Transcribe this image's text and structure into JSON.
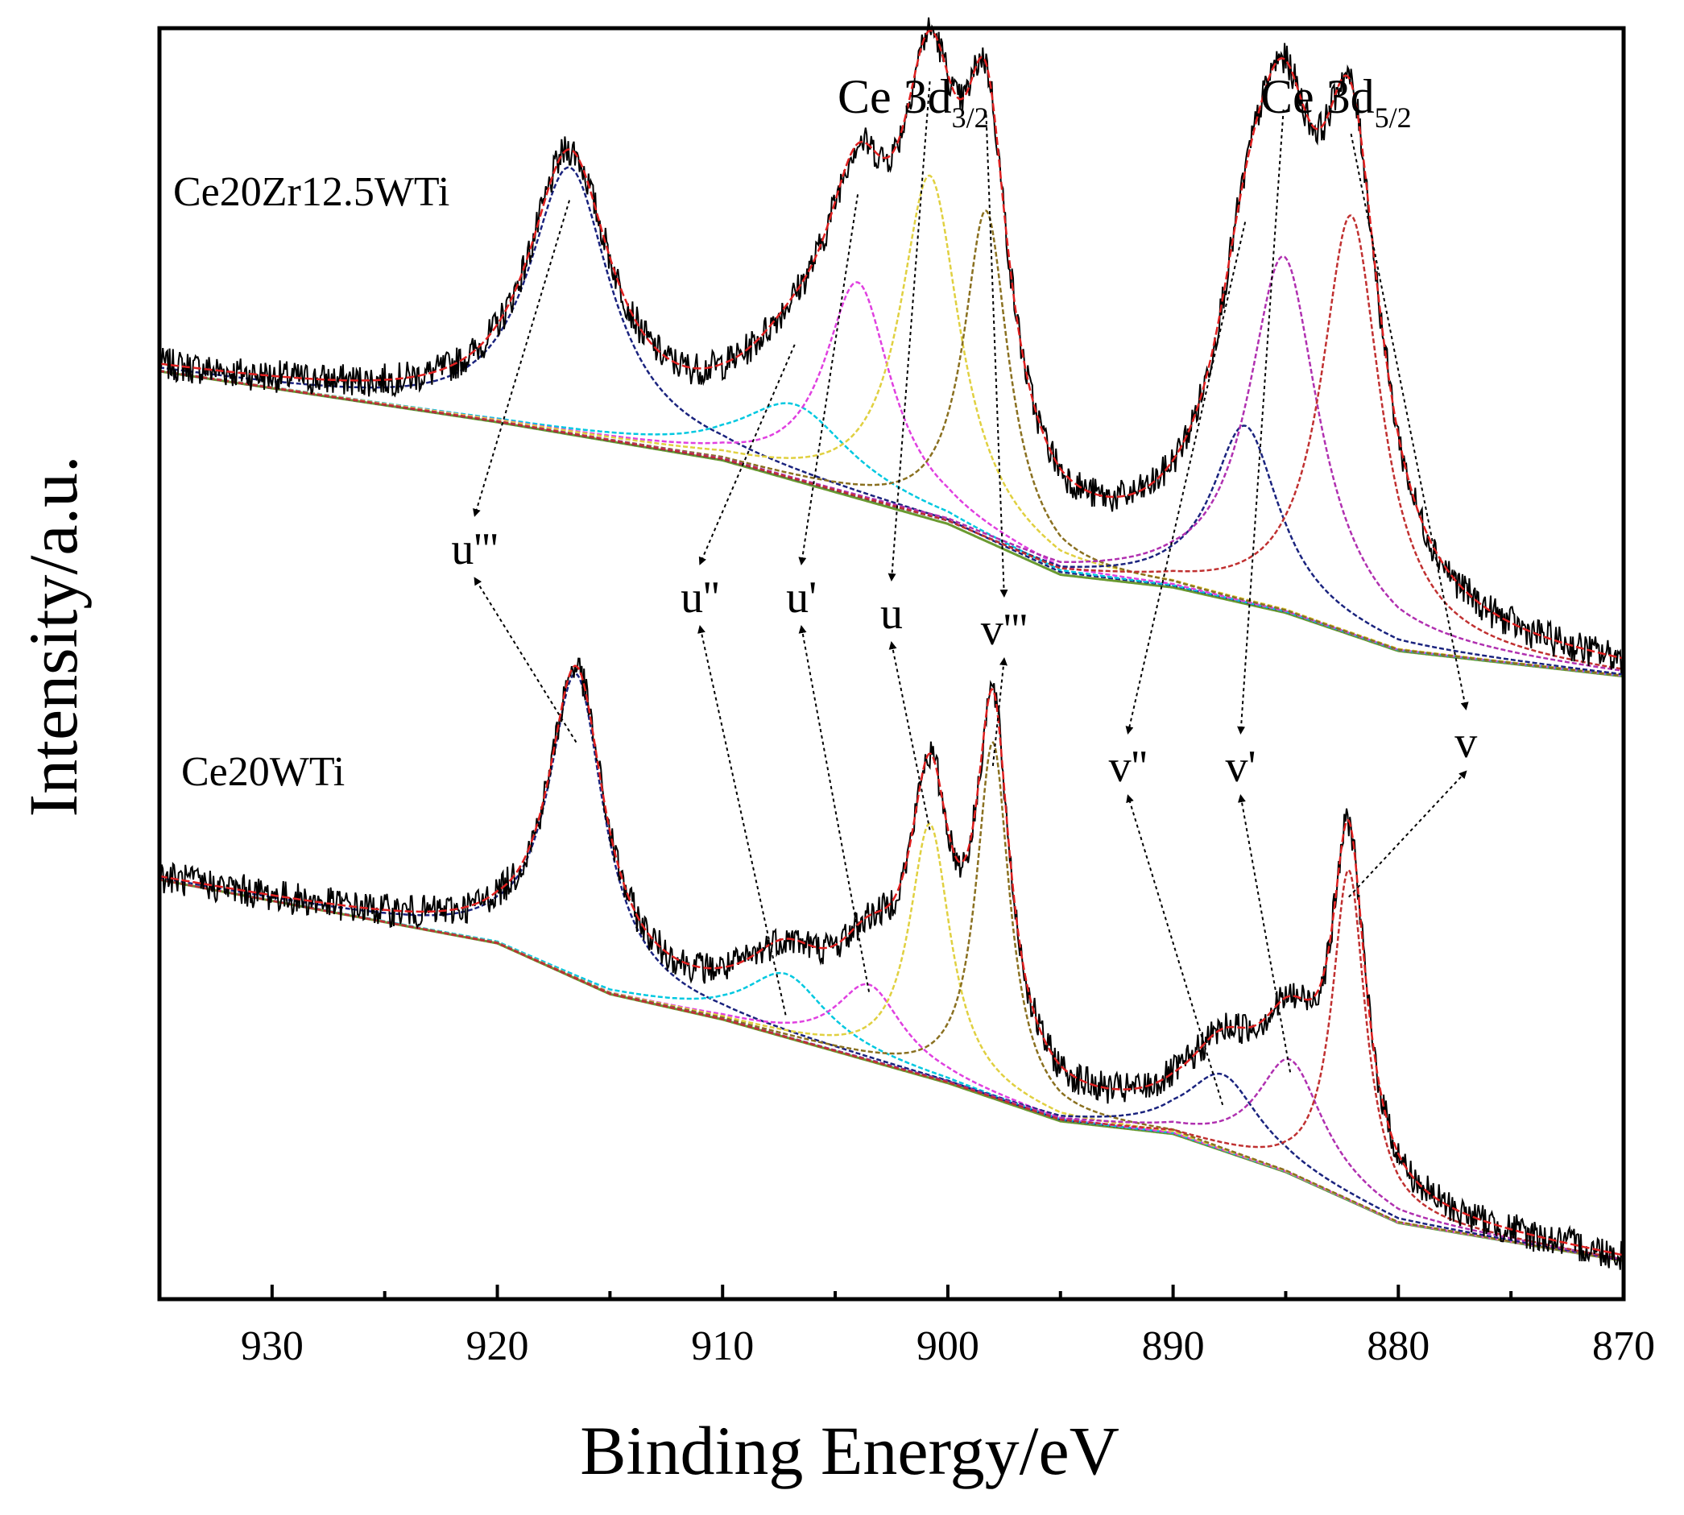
{
  "chart_data": {
    "type": "line",
    "title": "",
    "xlabel": "Binding Energy/eV",
    "ylabel": "Intensity/a.u.",
    "xlim": [
      935,
      870
    ],
    "x_reversed": true,
    "ylim": [
      0,
      100
    ],
    "x_ticks": [
      930,
      920,
      910,
      900,
      890,
      880,
      870
    ],
    "region_labels": [
      {
        "id": "ce3d32",
        "main": "Ce 3d",
        "sub": "3/2",
        "x": 900.5
      },
      {
        "id": "ce3d52",
        "main": "Ce 3d",
        "sub": "5/2",
        "x": 882.5
      }
    ],
    "peak_labels": [
      {
        "id": "u3",
        "text": "u'''",
        "x": 921
      },
      {
        "id": "u2",
        "text": "u''",
        "x": 911
      },
      {
        "id": "u1",
        "text": "u'",
        "x": 906.5
      },
      {
        "id": "u0",
        "text": "u",
        "x": 902.5
      },
      {
        "id": "v3",
        "text": "v'''",
        "x": 897.5
      },
      {
        "id": "v2",
        "text": "v''",
        "x": 892
      },
      {
        "id": "v1",
        "text": "v'",
        "x": 887
      },
      {
        "id": "v0",
        "text": "v",
        "x": 877
      }
    ],
    "series": [
      {
        "name": "Ce20Zr12.5WTi",
        "baseline_points": [
          [
            935,
            73
          ],
          [
            920,
            69
          ],
          [
            910,
            66
          ],
          [
            900,
            61
          ],
          [
            895,
            57
          ],
          [
            890,
            56
          ],
          [
            885,
            54
          ],
          [
            880,
            51
          ],
          [
            870,
            49
          ]
        ],
        "components": [
          {
            "peak": "u'''",
            "center": 916.8,
            "height": 21,
            "width": 2.2,
            "color": "#1a237e"
          },
          {
            "peak": "u''",
            "center": 906.8,
            "height": 6,
            "width": 3.0,
            "color": "#00c8e0"
          },
          {
            "peak": "u'",
            "center": 904.0,
            "height": 17,
            "width": 1.8,
            "color": "#e040e0"
          },
          {
            "peak": "u",
            "center": 900.8,
            "height": 27,
            "width": 1.6,
            "color": "#e0d040"
          },
          {
            "peak": "v'''",
            "center": 898.3,
            "height": 26,
            "width": 1.2,
            "color": "#8a7020"
          },
          {
            "peak": "v''",
            "center": 886.8,
            "height": 14,
            "width": 1.8,
            "color": "#1a237e"
          },
          {
            "peak": "v'",
            "center": 885.1,
            "height": 28,
            "width": 1.9,
            "color": "#b030b0"
          },
          {
            "peak": "v",
            "center": 882.1,
            "height": 33,
            "width": 1.6,
            "color": "#c03030"
          }
        ]
      },
      {
        "name": "Ce20WTi",
        "baseline_points": [
          [
            935,
            33
          ],
          [
            920,
            28
          ],
          [
            915,
            24
          ],
          [
            910,
            22
          ],
          [
            900,
            17
          ],
          [
            895,
            14
          ],
          [
            890,
            13
          ],
          [
            885,
            10
          ],
          [
            880,
            6
          ],
          [
            870,
            3
          ]
        ],
        "components": [
          {
            "peak": "u'''",
            "center": 916.5,
            "height": 24,
            "width": 1.5,
            "color": "#1a237e"
          },
          {
            "peak": "u''",
            "center": 907.2,
            "height": 5,
            "width": 2.2,
            "color": "#00c8e0"
          },
          {
            "peak": "u'",
            "center": 903.5,
            "height": 6,
            "width": 1.8,
            "color": "#e040e0"
          },
          {
            "peak": "u",
            "center": 900.8,
            "height": 20,
            "width": 1.1,
            "color": "#e0d040"
          },
          {
            "peak": "v'''",
            "center": 898.0,
            "height": 28,
            "width": 0.9,
            "color": "#8a7020"
          },
          {
            "peak": "v''",
            "center": 887.8,
            "height": 6,
            "width": 2.0,
            "color": "#1a237e"
          },
          {
            "peak": "v'",
            "center": 884.8,
            "height": 9,
            "width": 1.8,
            "color": "#b030b0"
          },
          {
            "peak": "v",
            "center": 882.2,
            "height": 26,
            "width": 0.9,
            "color": "#c03030"
          }
        ]
      }
    ],
    "annotations": "Arrows connect each fitted component peak of Ce20Zr12.5WTi (top) and Ce20WTi (bottom) to the labels u''', u'', u', u, v''', v'', v', v"
  }
}
